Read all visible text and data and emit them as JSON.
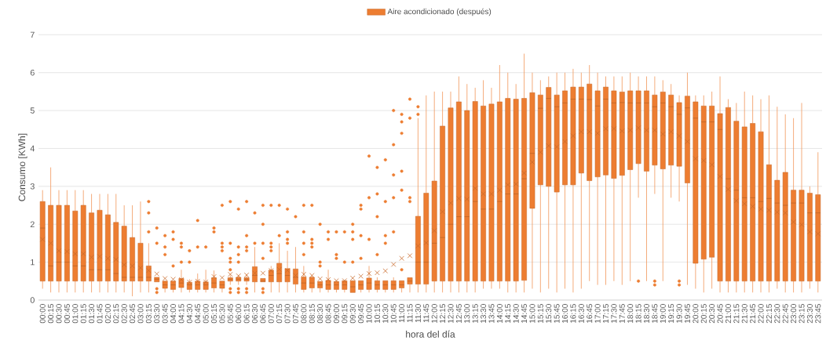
{
  "chart_data": {
    "type": "box",
    "xlabel": "hora del día",
    "ylabel": "Consumo [KWh]",
    "legend": "top",
    "grid": "y",
    "ylim": [
      0,
      7
    ],
    "yticks": [
      0,
      1,
      2,
      3,
      4,
      5,
      6,
      7
    ],
    "categories": [
      "00:00",
      "00:15",
      "00:30",
      "00:45",
      "01:00",
      "01:15",
      "01:30",
      "01:45",
      "02:00",
      "02:15",
      "02:30",
      "02:45",
      "03:00",
      "03:15",
      "03:30",
      "03:45",
      "04:00",
      "04:15",
      "04:30",
      "04:45",
      "05:00",
      "05:15",
      "05:30",
      "05:45",
      "06:00",
      "06:15",
      "06:30",
      "06:45",
      "07:00",
      "07:15",
      "07:30",
      "07:45",
      "08:00",
      "08:15",
      "08:30",
      "08:45",
      "09:00",
      "09:15",
      "09:30",
      "09:45",
      "10:00",
      "10:15",
      "10:30",
      "10:45",
      "11:00",
      "11:15",
      "11:30",
      "11:45",
      "12:00",
      "12:15",
      "12:30",
      "12:45",
      "13:00",
      "13:15",
      "13:30",
      "13:45",
      "14:00",
      "14:15",
      "14:30",
      "14:45",
      "15:00",
      "15:15",
      "15:30",
      "15:45",
      "16:00",
      "16:15",
      "16:30",
      "16:45",
      "17:00",
      "17:15",
      "17:30",
      "17:45",
      "18:00",
      "18:15",
      "18:30",
      "18:45",
      "19:00",
      "19:15",
      "19:30",
      "19:45",
      "20:00",
      "20:15",
      "20:30",
      "20:45",
      "21:00",
      "21:15",
      "21:30",
      "21:45",
      "22:00",
      "22:15",
      "22:30",
      "22:45",
      "23:00",
      "23:15",
      "23:30",
      "23:45"
    ],
    "series": [
      {
        "name": "Aire acondicionado (después)",
        "color": "#ed7d31",
        "boxes": [
          {
            "low": 0.3,
            "q1": 0.5,
            "median": 1.9,
            "q3": 2.6,
            "high": 2.9,
            "mean": 1.6
          },
          {
            "low": 0.2,
            "q1": 0.5,
            "median": 0.9,
            "q3": 2.5,
            "high": 3.5,
            "mean": 1.5
          },
          {
            "low": 0.2,
            "q1": 0.5,
            "median": 1.0,
            "q3": 2.5,
            "high": 2.9,
            "mean": 1.3
          },
          {
            "low": 0.2,
            "q1": 0.5,
            "median": 1.0,
            "q3": 2.5,
            "high": 2.9,
            "mean": 1.28
          },
          {
            "low": 0.2,
            "q1": 0.5,
            "median": 0.9,
            "q3": 2.35,
            "high": 2.9,
            "mean": 1.22
          },
          {
            "low": 0.2,
            "q1": 0.5,
            "median": 0.9,
            "q3": 2.5,
            "high": 2.9,
            "mean": 1.22
          },
          {
            "low": 0.2,
            "q1": 0.5,
            "median": 0.8,
            "q3": 2.3,
            "high": 2.8,
            "mean": 1.13
          },
          {
            "low": 0.2,
            "q1": 0.5,
            "median": 0.8,
            "q3": 2.37,
            "high": 2.8,
            "mean": 1.15
          },
          {
            "low": 0.2,
            "q1": 0.5,
            "median": 0.8,
            "q3": 2.25,
            "high": 2.8,
            "mean": 1.1
          },
          {
            "low": 0.2,
            "q1": 0.5,
            "median": 0.7,
            "q3": 2.05,
            "high": 2.8,
            "mean": 1.07
          },
          {
            "low": 0.2,
            "q1": 0.5,
            "median": 0.6,
            "q3": 1.95,
            "high": 2.5,
            "mean": 0.93
          },
          {
            "low": 0.1,
            "q1": 0.5,
            "median": 0.6,
            "q3": 1.65,
            "high": 2.5,
            "mean": 0.9
          },
          {
            "low": 0.2,
            "q1": 0.5,
            "median": 0.6,
            "q3": 1.5,
            "high": 2.6,
            "mean": 0.85
          },
          {
            "low": 0.2,
            "q1": 0.5,
            "median": 0.6,
            "q3": 0.9,
            "high": 1.5,
            "mean": 0.78,
            "outliers": [
              2.6,
              2.3,
              1.8
            ]
          },
          {
            "low": 0.48,
            "q1": 0.48,
            "median": 0.55,
            "q3": 0.6,
            "high": 0.6,
            "mean": 0.69,
            "outliers": [
              1.9,
              1.5,
              0.3,
              0.2
            ]
          },
          {
            "low": 0.2,
            "q1": 0.31,
            "median": 0.4,
            "q3": 0.5,
            "high": 0.5,
            "mean": 0.57,
            "outliers": [
              1.7,
              1.4,
              1.2
            ]
          },
          {
            "low": 0.2,
            "q1": 0.28,
            "median": 0.4,
            "q3": 0.5,
            "high": 0.5,
            "mean": 0.55,
            "outliers": [
              1.8,
              1.6,
              0.9
            ]
          },
          {
            "low": 0.2,
            "q1": 0.33,
            "median": 0.45,
            "q3": 0.57,
            "high": 0.8,
            "mean": 0.54,
            "outliers": [
              1.5,
              1.4,
              1.0
            ]
          },
          {
            "low": 0.2,
            "q1": 0.28,
            "median": 0.4,
            "q3": 0.47,
            "high": 0.55,
            "mean": 0.47,
            "outliers": [
              1.3,
              1.0
            ]
          },
          {
            "low": 0.2,
            "q1": 0.28,
            "median": 0.4,
            "q3": 0.5,
            "high": 0.7,
            "mean": 0.5,
            "outliers": [
              2.1,
              1.4
            ]
          },
          {
            "low": 0.2,
            "q1": 0.28,
            "median": 0.4,
            "q3": 0.48,
            "high": 0.8,
            "mean": 0.48,
            "outliers": [
              1.4
            ]
          },
          {
            "low": 0.2,
            "q1": 0.32,
            "median": 0.45,
            "q3": 0.59,
            "high": 0.78,
            "mean": 0.62,
            "outliers": [
              1.9,
              1.8
            ]
          },
          {
            "low": 0.2,
            "q1": 0.31,
            "median": 0.4,
            "q3": 0.5,
            "high": 0.5,
            "mean": 0.59,
            "outliers": [
              2.5,
              1.5,
              1.4,
              1.3
            ]
          },
          {
            "low": 0.4,
            "q1": 0.5,
            "median": 0.55,
            "q3": 0.59,
            "high": 0.65,
            "mean": 0.68,
            "outliers": [
              2.6,
              1.5,
              1.1,
              1.0,
              0.8,
              0.3,
              0.2
            ]
          },
          {
            "low": 0.4,
            "q1": 0.5,
            "median": 0.55,
            "q3": 0.6,
            "high": 0.65,
            "mean": 0.64,
            "outliers": [
              2.4,
              1.4,
              1.2,
              1.0,
              0.3,
              0.2
            ]
          },
          {
            "low": 0.4,
            "q1": 0.5,
            "median": 0.55,
            "q3": 0.59,
            "high": 0.65,
            "mean": 0.66,
            "outliers": [
              2.6,
              1.7,
              1.4,
              1.3,
              0.3,
              0.2
            ]
          },
          {
            "low": 0.2,
            "q1": 0.48,
            "median": 0.65,
            "q3": 0.88,
            "high": 1.4,
            "mean": 0.71,
            "outliers": [
              2.3,
              1.5
            ]
          },
          {
            "low": 0.48,
            "q1": 0.48,
            "median": 0.5,
            "q3": 0.57,
            "high": 0.57,
            "mean": 0.71,
            "outliers": [
              2.5,
              2.0,
              1.5,
              1.1,
              0.3,
              0.2
            ]
          },
          {
            "low": 0.2,
            "q1": 0.48,
            "median": 0.65,
            "q3": 0.79,
            "high": 0.9,
            "mean": 0.78,
            "outliers": [
              2.5,
              1.5,
              1.4,
              1.3
            ]
          },
          {
            "low": 0.2,
            "q1": 0.48,
            "median": 0.7,
            "q3": 0.97,
            "high": 1.5,
            "mean": 0.81,
            "outliers": [
              2.5,
              1.7
            ]
          },
          {
            "low": 0.2,
            "q1": 0.48,
            "median": 0.65,
            "q3": 0.83,
            "high": 1.3,
            "mean": 0.78,
            "outliers": [
              2.4,
              1.8,
              1.6,
              1.5
            ]
          },
          {
            "low": 0.2,
            "q1": 0.42,
            "median": 0.6,
            "q3": 0.82,
            "high": 1.4,
            "mean": 0.65,
            "outliers": [
              2.2
            ]
          },
          {
            "low": 0.2,
            "q1": 0.28,
            "median": 0.45,
            "q3": 0.61,
            "high": 0.9,
            "mean": 0.68,
            "outliers": [
              2.5,
              1.8,
              1.5,
              1.2
            ]
          },
          {
            "low": 0.2,
            "q1": 0.32,
            "median": 0.45,
            "q3": 0.6,
            "high": 0.65,
            "mean": 0.65,
            "outliers": [
              2.5,
              1.6,
              1.5,
              1.4
            ]
          },
          {
            "low": 0.2,
            "q1": 0.32,
            "median": 0.4,
            "q3": 0.49,
            "high": 0.49,
            "mean": 0.56,
            "outliers": [
              2.0,
              1.0,
              0.9
            ]
          },
          {
            "low": 0.2,
            "q1": 0.28,
            "median": 0.4,
            "q3": 0.52,
            "high": 0.8,
            "mean": 0.54,
            "outliers": [
              1.8,
              1.6
            ]
          },
          {
            "low": 0.2,
            "q1": 0.28,
            "median": 0.4,
            "q3": 0.49,
            "high": 0.49,
            "mean": 0.51,
            "outliers": [
              1.8,
              1.2,
              1.1
            ]
          },
          {
            "low": 0.2,
            "q1": 0.28,
            "median": 0.4,
            "q3": 0.51,
            "high": 0.51,
            "mean": 0.51,
            "outliers": [
              1.8,
              1.0
            ]
          },
          {
            "low": 0.2,
            "q1": 0.2,
            "median": 0.35,
            "q3": 0.51,
            "high": 0.51,
            "mean": 0.58,
            "outliers": [
              2.0,
              1.8,
              1.6,
              1.0
            ]
          },
          {
            "low": 0.2,
            "q1": 0.28,
            "median": 0.4,
            "q3": 0.51,
            "high": 0.51,
            "mean": 0.63,
            "outliers": [
              2.5,
              2.4,
              1.7,
              1.1
            ]
          },
          {
            "low": 0.2,
            "q1": 0.28,
            "median": 0.45,
            "q3": 0.58,
            "high": 0.9,
            "mean": 0.7,
            "outliers": [
              3.8,
              2.7,
              1.6
            ]
          },
          {
            "low": 0.2,
            "q1": 0.28,
            "median": 0.4,
            "q3": 0.51,
            "high": 0.6,
            "mean": 0.72,
            "outliers": [
              3.5,
              2.8,
              2.2,
              1.2
            ]
          },
          {
            "low": 0.2,
            "q1": 0.28,
            "median": 0.4,
            "q3": 0.51,
            "high": 0.51,
            "mean": 0.77,
            "outliers": [
              3.7,
              2.6,
              1.7,
              1.5
            ]
          },
          {
            "low": 0.2,
            "q1": 0.28,
            "median": 0.4,
            "q3": 0.51,
            "high": 0.6,
            "mean": 0.94,
            "outliers": [
              5.0,
              4.1,
              3.3,
              2.7,
              1.8
            ]
          },
          {
            "low": 0.2,
            "q1": 0.32,
            "median": 0.4,
            "q3": 0.51,
            "high": 0.51,
            "mean": 1.1,
            "outliers": [
              4.9,
              4.7,
              4.4,
              3.4,
              2.9,
              0.8
            ]
          },
          {
            "low": 0.2,
            "q1": 0.42,
            "median": 0.5,
            "q3": 0.59,
            "high": 0.59,
            "mean": 1.17,
            "outliers": [
              5.3,
              4.8,
              2.7,
              2.6
            ]
          },
          {
            "low": 0.2,
            "q1": 0.42,
            "median": 1.0,
            "q3": 2.21,
            "high": 4.8,
            "mean": 1.43,
            "outliers": [
              5.1,
              4.9
            ]
          },
          {
            "low": 0.2,
            "q1": 0.42,
            "median": 1.0,
            "q3": 2.82,
            "high": 5.4,
            "mean": 1.51
          },
          {
            "low": 0.2,
            "q1": 0.5,
            "median": 1.5,
            "q3": 3.14,
            "high": 5.5,
            "mean": 1.83
          },
          {
            "low": 0.2,
            "q1": 0.5,
            "median": 1.65,
            "q3": 4.59,
            "high": 5.5,
            "mean": 2.33
          },
          {
            "low": 0.2,
            "q1": 0.5,
            "median": 2.0,
            "q3": 5.07,
            "high": 5.5,
            "mean": 2.56
          },
          {
            "low": 0.2,
            "q1": 0.5,
            "median": 2.2,
            "q3": 5.23,
            "high": 5.9,
            "mean": 2.68
          },
          {
            "low": 0.2,
            "q1": 0.5,
            "median": 2.2,
            "q3": 5.0,
            "high": 5.7,
            "mean": 2.66
          },
          {
            "low": 0.2,
            "q1": 0.5,
            "median": 2.6,
            "q3": 5.24,
            "high": 5.6,
            "mean": 2.95
          },
          {
            "low": 0.3,
            "q1": 0.5,
            "median": 2.4,
            "q3": 5.12,
            "high": 5.8,
            "mean": 2.8
          },
          {
            "low": 0.3,
            "q1": 0.5,
            "median": 2.4,
            "q3": 5.17,
            "high": 5.6,
            "mean": 2.8
          },
          {
            "low": 0.3,
            "q1": 0.5,
            "median": 2.6,
            "q3": 5.23,
            "high": 6.2,
            "mean": 2.9
          },
          {
            "low": 0.2,
            "q1": 0.5,
            "median": 2.8,
            "q3": 5.32,
            "high": 6.0,
            "mean": 3.04
          },
          {
            "low": 0.2,
            "q1": 0.5,
            "median": 2.8,
            "q3": 5.3,
            "high": 5.7,
            "mean": 3.06
          },
          {
            "low": 0.2,
            "q1": 0.52,
            "median": 3.2,
            "q3": 5.32,
            "high": 6.5,
            "mean": 3.35
          },
          {
            "low": 0.3,
            "q1": 2.42,
            "median": 3.87,
            "q3": 5.47,
            "high": 6.0,
            "mean": 3.64
          },
          {
            "low": 0.2,
            "q1": 3.04,
            "median": 5.06,
            "q3": 5.41,
            "high": 5.8,
            "mean": 3.9
          },
          {
            "low": 0.3,
            "q1": 3.0,
            "median": 5.32,
            "q3": 5.61,
            "high": 5.9,
            "mean": 4.07
          },
          {
            "low": 0.2,
            "q1": 2.85,
            "median": 5.1,
            "q3": 5.41,
            "high": 6.0,
            "mean": 4.04
          },
          {
            "low": 0.3,
            "q1": 3.04,
            "median": 5.2,
            "q3": 5.52,
            "high": 6.0,
            "mean": 4.18
          },
          {
            "low": 0.2,
            "q1": 3.04,
            "median": 5.3,
            "q3": 5.62,
            "high": 6.1,
            "mean": 4.33
          },
          {
            "low": 0.3,
            "q1": 3.35,
            "median": 5.3,
            "q3": 5.62,
            "high": 6.0,
            "mean": 4.44
          },
          {
            "low": 0.5,
            "q1": 3.15,
            "median": 5.29,
            "q3": 5.7,
            "high": 6.2,
            "mean": 4.44
          },
          {
            "low": 0.4,
            "q1": 3.25,
            "median": 5.12,
            "q3": 5.52,
            "high": 6.0,
            "mean": 4.4
          },
          {
            "low": 0.4,
            "q1": 3.3,
            "median": 5.3,
            "q3": 5.62,
            "high": 5.9,
            "mean": 4.52
          },
          {
            "low": 0.5,
            "q1": 3.21,
            "median": 5.2,
            "q3": 5.52,
            "high": 5.9,
            "mean": 4.52
          },
          {
            "low": 0.4,
            "q1": 3.29,
            "median": 5.21,
            "q3": 5.49,
            "high": 5.9,
            "mean": 4.46
          },
          {
            "low": 0.5,
            "q1": 3.44,
            "median": 5.2,
            "q3": 5.52,
            "high": 6.0,
            "mean": 4.48
          },
          {
            "low": 2.7,
            "q1": 3.6,
            "median": 5.2,
            "q3": 5.52,
            "high": 5.9,
            "mean": 4.54,
            "outliers": [
              0.5
            ]
          },
          {
            "low": 0.5,
            "q1": 3.4,
            "median": 5.2,
            "q3": 5.52,
            "high": 5.9,
            "mean": 4.48
          },
          {
            "low": 2.8,
            "q1": 3.56,
            "median": 5.1,
            "q3": 5.41,
            "high": 5.9,
            "mean": 4.48,
            "outliers": [
              0.5,
              0.4
            ]
          },
          {
            "low": 0.5,
            "q1": 3.46,
            "median": 5.2,
            "q3": 5.49,
            "high": 5.8,
            "mean": 4.38
          },
          {
            "low": 2.7,
            "q1": 3.56,
            "median": 5.1,
            "q3": 5.41,
            "high": 5.7,
            "mean": 4.44
          },
          {
            "low": 2.6,
            "q1": 3.53,
            "median": 4.9,
            "q3": 5.21,
            "high": 5.4,
            "mean": 4.33,
            "outliers": [
              0.5,
              0.4
            ]
          },
          {
            "low": 0.4,
            "q1": 3.09,
            "median": 5.07,
            "q3": 5.38,
            "high": 6.0,
            "mean": 4.18
          },
          {
            "low": 0.3,
            "q1": 0.97,
            "median": 4.8,
            "q3": 5.23,
            "high": 5.4,
            "mean": 3.73
          },
          {
            "low": 0.2,
            "q1": 1.08,
            "median": 4.7,
            "q3": 5.12,
            "high": 5.4,
            "mean": 3.68
          },
          {
            "low": 0.3,
            "q1": 1.13,
            "median": 4.7,
            "q3": 5.12,
            "high": 5.5,
            "mean": 3.57
          },
          {
            "low": 0.2,
            "q1": 0.5,
            "median": 4.5,
            "q3": 4.92,
            "high": 5.9,
            "mean": 3.26
          },
          {
            "low": 0.2,
            "q1": 0.5,
            "median": 3.2,
            "q3": 5.08,
            "high": 5.3,
            "mean": 2.92
          },
          {
            "low": 0.2,
            "q1": 0.5,
            "median": 2.9,
            "q3": 4.72,
            "high": 5.2,
            "mean": 2.62
          },
          {
            "low": 0.2,
            "q1": 0.5,
            "median": 2.7,
            "q3": 4.57,
            "high": 5.5,
            "mean": 2.54
          },
          {
            "low": 0.2,
            "q1": 0.5,
            "median": 2.7,
            "q3": 4.66,
            "high": 5.4,
            "mean": 2.47
          },
          {
            "low": 0.2,
            "q1": 0.5,
            "median": 2.6,
            "q3": 4.44,
            "high": 5.3,
            "mean": 2.4
          },
          {
            "low": 0.2,
            "q1": 0.5,
            "median": 2.68,
            "q3": 3.57,
            "high": 5.4,
            "mean": 2.37
          },
          {
            "low": 0.3,
            "q1": 0.5,
            "median": 2.56,
            "q3": 3.16,
            "high": 5.1,
            "mean": 2.32
          },
          {
            "low": 0.2,
            "q1": 0.5,
            "median": 2.5,
            "q3": 3.37,
            "high": 4.9,
            "mean": 2.3
          },
          {
            "low": 0.2,
            "q1": 0.5,
            "median": 2.56,
            "q3": 2.9,
            "high": 4.8,
            "mean": 2.06
          },
          {
            "low": 0.2,
            "q1": 0.5,
            "median": 2.56,
            "q3": 2.9,
            "high": 5.2,
            "mean": 1.99
          },
          {
            "low": 0.3,
            "q1": 0.5,
            "median": 2.3,
            "q3": 2.82,
            "high": 3.0,
            "mean": 1.8
          },
          {
            "low": 0.2,
            "q1": 0.5,
            "median": 2.3,
            "q3": 2.78,
            "high": 3.9,
            "mean": 1.75
          }
        ]
      }
    ]
  }
}
